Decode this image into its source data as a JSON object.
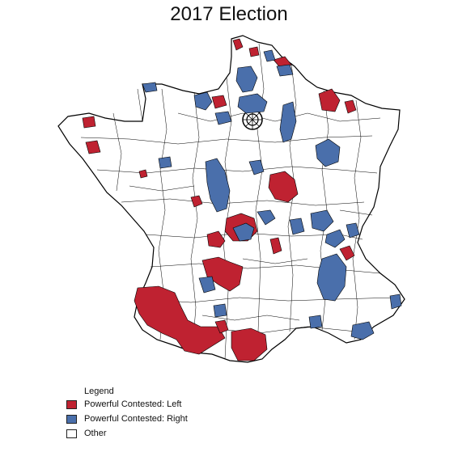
{
  "title": "2017 Election",
  "legend": {
    "heading": "Legend",
    "items": [
      {
        "label": "Powerful Contested: Left",
        "color": "#bf2231"
      },
      {
        "label": "Powerful Contested: Right",
        "color": "#4a6fab"
      },
      {
        "label": "Other",
        "color": "#ffffff"
      }
    ]
  },
  "colors": {
    "left": "#bf2231",
    "right": "#4a6fab",
    "other": "#ffffff",
    "boundary": "#000000"
  }
}
